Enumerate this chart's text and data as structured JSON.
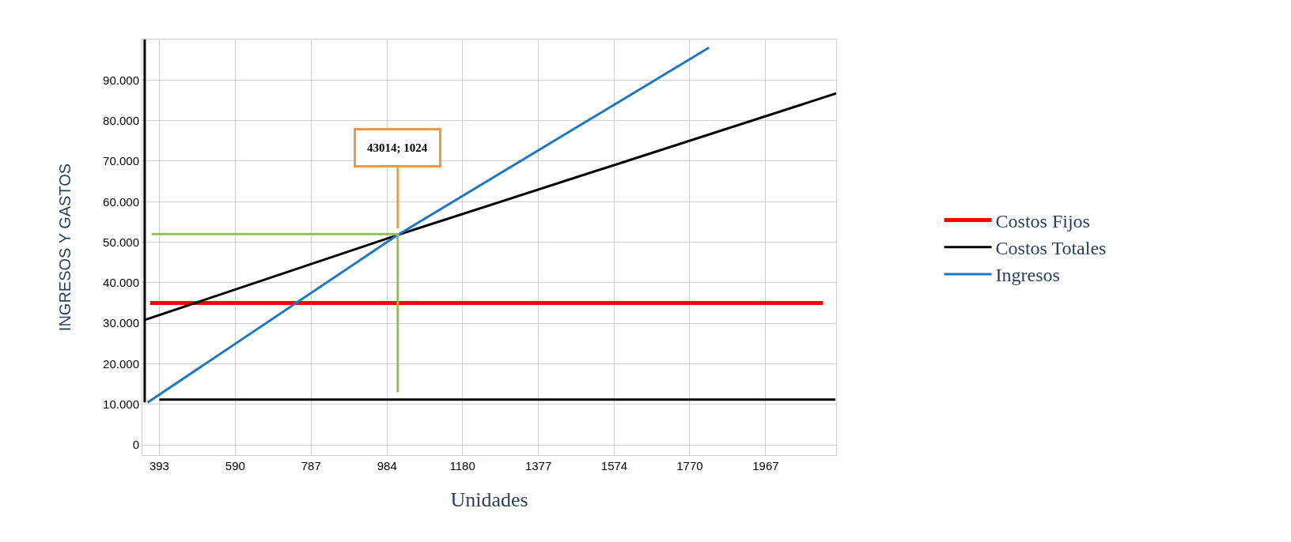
{
  "chart_data": {
    "type": "line",
    "xlabel": "Unidades",
    "ylabel": "INGRESOS Y GASTOS",
    "xlim": [
      349,
      2150
    ],
    "ylim": [
      -2500,
      100000
    ],
    "xticks": [
      393,
      590,
      787,
      984,
      1180,
      1377,
      1574,
      1770,
      1967
    ],
    "yticks": [
      {
        "value": 0,
        "label": "0"
      },
      {
        "value": 10000,
        "label": "10.000"
      },
      {
        "value": 20000,
        "label": "20.000"
      },
      {
        "value": 30000,
        "label": "30.000"
      },
      {
        "value": 40000,
        "label": "40.000"
      },
      {
        "value": 50000,
        "label": "50.000"
      },
      {
        "value": 60000,
        "label": "60.000"
      },
      {
        "value": 70000,
        "label": "70.000"
      },
      {
        "value": 80000,
        "label": "80.000"
      },
      {
        "value": 90000,
        "label": "90.000"
      }
    ],
    "grid": true,
    "legend": "right",
    "marker": "none",
    "line_style": "solid",
    "series": [
      {
        "name": "Costos Fijos",
        "color": "#ff0000",
        "x": [
          369,
          2116
        ],
        "values": [
          35000,
          35000
        ]
      },
      {
        "name": "Costos Totales",
        "color": "#000000",
        "x": [
          357,
          1012,
          2150
        ],
        "values": [
          30900,
          51800,
          86700
        ]
      },
      {
        "name": "Ingresos",
        "color": "#1f77c4",
        "x": [
          363,
          1012,
          1820
        ],
        "values": [
          10500,
          51800,
          98000
        ]
      },
      {
        "color": "#9bbb59",
        "x": [
          373,
          1012,
          1012
        ],
        "values": [
          52000,
          52000,
          13000
        ]
      },
      {
        "color": "#000000",
        "x": [
          393,
          2148
        ],
        "values": [
          11200,
          11200
        ]
      },
      {
        "color": "#000000",
        "x": [
          355,
          355
        ],
        "values": [
          10500,
          100000
        ]
      }
    ],
    "annotations": [
      {
        "text": "43014; 1024",
        "x": 1012,
        "y": 51800
      }
    ]
  }
}
